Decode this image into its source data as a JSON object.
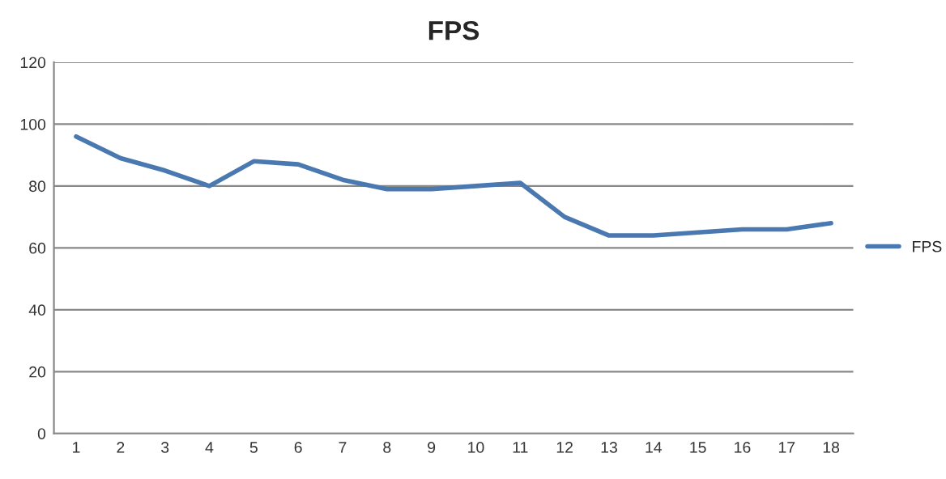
{
  "chart_data": {
    "type": "line",
    "title": "FPS",
    "categories": [
      "1",
      "2",
      "3",
      "4",
      "5",
      "6",
      "7",
      "8",
      "9",
      "10",
      "11",
      "12",
      "13",
      "14",
      "15",
      "16",
      "17",
      "18"
    ],
    "series": [
      {
        "name": "FPS",
        "color": "#4a78b0",
        "values": [
          96,
          89,
          85,
          80,
          88,
          87,
          82,
          79,
          79,
          80,
          81,
          70,
          64,
          64,
          65,
          66,
          66,
          68
        ]
      }
    ],
    "ylim": [
      0,
      120
    ],
    "yticks": [
      0,
      20,
      40,
      60,
      80,
      100,
      120
    ],
    "grid": "y",
    "legend": "right",
    "marker": "none",
    "line_style": "solid"
  }
}
